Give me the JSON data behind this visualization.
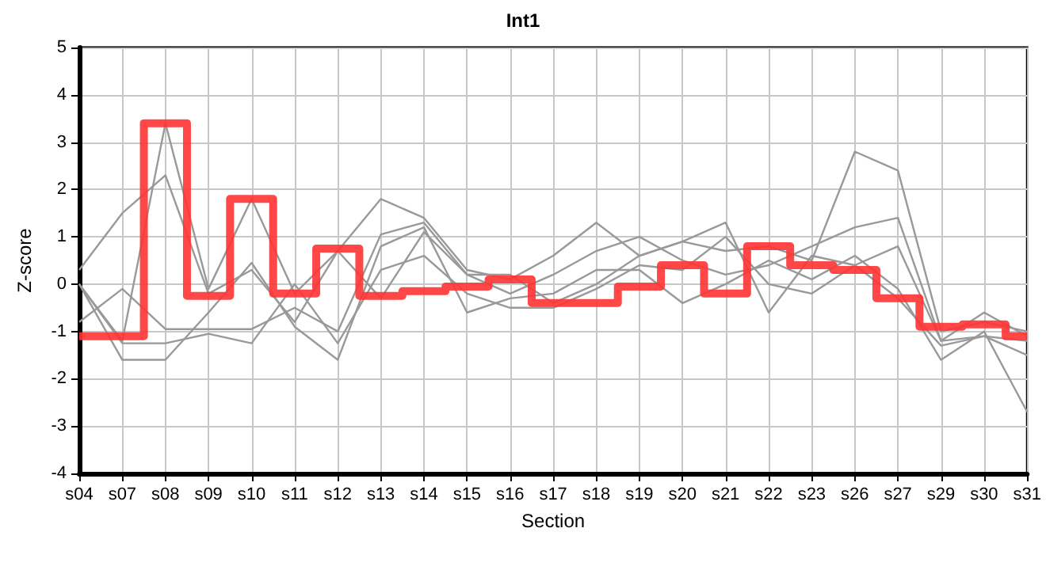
{
  "chart_data": {
    "type": "line",
    "title": "Int1",
    "xlabel": "Section",
    "ylabel": "Z-score",
    "categories": [
      "s04",
      "s07",
      "s08",
      "s09",
      "s10",
      "s11",
      "s12",
      "s13",
      "s14",
      "s15",
      "s16",
      "s17",
      "s18",
      "s19",
      "s20",
      "s21",
      "s22",
      "s23",
      "s26",
      "s27",
      "s29",
      "s30",
      "s31"
    ],
    "series": [
      {
        "color": "#999999",
        "values": [
          0.3,
          1.5,
          2.3,
          -0.2,
          0.3,
          -0.8,
          0.7,
          1.8,
          1.4,
          0.3,
          0.1,
          0.6,
          1.3,
          0.6,
          0.9,
          0.7,
          0.8,
          0.5,
          2.8,
          2.4,
          -1.0,
          -0.8,
          -1.0
        ]
      },
      {
        "color": "#999999",
        "values": [
          0,
          -1.2,
          3.4,
          -0.1,
          1.8,
          -0.2,
          0.7,
          -0.3,
          1.1,
          0.2,
          -0.2,
          0.2,
          0.7,
          1.0,
          0.5,
          0.2,
          0.4,
          0.8,
          1.2,
          1.4,
          -1.2,
          -0.6,
          -1.1
        ]
      },
      {
        "color": "#999999",
        "values": [
          -0.8,
          -0.1,
          -0.95,
          -0.95,
          -0.95,
          -0.5,
          -1.0,
          1.05,
          1.3,
          0.2,
          0.2,
          -0.4,
          0.0,
          0.6,
          0.9,
          1.3,
          -0.6,
          0.6,
          0.4,
          0.8,
          -1.2,
          -1.1,
          -1.5
        ]
      },
      {
        "color": "#999999",
        "values": [
          0,
          -1.6,
          -1.6,
          -0.6,
          0.45,
          -0.9,
          -1.6,
          0.8,
          1.2,
          -0.6,
          -0.3,
          -0.2,
          0.3,
          0.3,
          -0.4,
          0.0,
          0.5,
          0.1,
          0.6,
          -0.1,
          -1.6,
          -1.0,
          -2.7
        ]
      },
      {
        "color": "#999999",
        "values": [
          0.0,
          -1.25,
          -1.25,
          -1.05,
          -1.25,
          0.0,
          -1.25,
          0.3,
          0.6,
          -0.2,
          -0.5,
          -0.5,
          -0.1,
          0.4,
          0.3,
          1.0,
          0.0,
          -0.2,
          0.4,
          -0.3,
          -1.3,
          -1.1,
          -1.2
        ]
      },
      {
        "type": "step",
        "color": "#ff3333",
        "values": [
          -1.1,
          -1.1,
          3.4,
          -0.25,
          1.8,
          -0.2,
          0.75,
          -0.25,
          -0.15,
          -0.05,
          0.1,
          -0.4,
          -0.4,
          -0.05,
          0.4,
          -0.2,
          0.8,
          0.4,
          0.3,
          -0.3,
          -0.9,
          -0.85,
          -1.1
        ]
      }
    ],
    "ylim": [
      -4,
      5
    ],
    "yticks": [
      -4,
      -3,
      -2,
      -1,
      0,
      1,
      2,
      3,
      4,
      5
    ],
    "grid": true,
    "marker": "none"
  }
}
